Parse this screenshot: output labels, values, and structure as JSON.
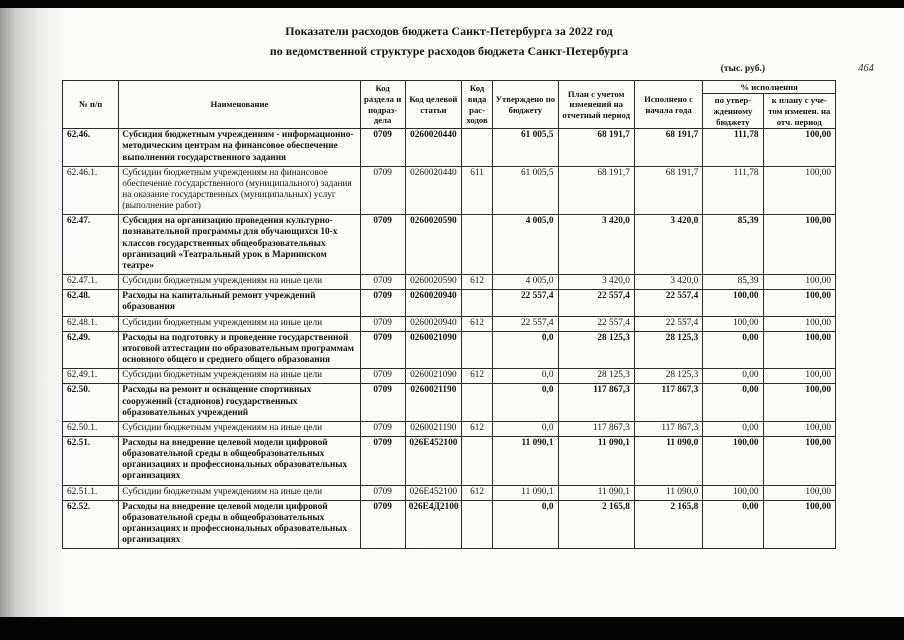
{
  "page_number": "464",
  "title_line1": "Показатели расходов бюджета Санкт-Петербурга за 2022 год",
  "title_line2": "по ведомственной структуре расходов бюджета Санкт-Петербурга",
  "units_note": "(тыс. руб.)",
  "table": {
    "headers": {
      "num": "№ п/п",
      "name": "Наименование",
      "section": "Код раздела и подраз-дела",
      "target": "Код целевой статьи",
      "vid": "Код вида рас-ходов",
      "approved": "Утверждено по бюджету",
      "plan": "План с учетом изменений на отчетный период",
      "executed": "Исполнено с начала года",
      "pct": "% исполнения",
      "pct_budget": "по утвер-жденному бюджету",
      "pct_plan": "к плану с уче-том изменен. на отч. период"
    },
    "rows": [
      {
        "num": "62.46.",
        "bold": true,
        "name": "Субсидия бюджетным учреждениям - информационно-методическим центрам на финансовое обеспечение выполнения государственного задания",
        "section": "0709",
        "target": "0260020440",
        "vid": "",
        "approved": "61 005,5",
        "plan": "68 191,7",
        "executed": "68 191,7",
        "pct_budget": "111,78",
        "pct_plan": "100,00"
      },
      {
        "num": "62.46.1.",
        "bold": false,
        "name": "Субсидии бюджетным учреждениям на финансовое обеспечение государственного (муниципального) задания на оказание государственных (муниципальных) услуг (выполнение работ)",
        "section": "0709",
        "target": "0260020440",
        "vid": "611",
        "approved": "61 005,5",
        "plan": "68 191,7",
        "executed": "68 191,7",
        "pct_budget": "111,78",
        "pct_plan": "100,00"
      },
      {
        "num": "62.47.",
        "bold": true,
        "name": "Субсидия на организацию проведения культурно-познавательной программы для обучающихся 10-х классов государственных общеобразовательных организаций «Театральный урок в Мариинском театре»",
        "section": "0709",
        "target": "0260020590",
        "vid": "",
        "approved": "4 005,0",
        "plan": "3 420,0",
        "executed": "3 420,0",
        "pct_budget": "85,39",
        "pct_plan": "100,00"
      },
      {
        "num": "62.47.1.",
        "bold": false,
        "name": "Субсидии бюджетным учреждениям на иные цели",
        "section": "0709",
        "target": "0260020590",
        "vid": "612",
        "approved": "4 005,0",
        "plan": "3 420,0",
        "executed": "3 420,0",
        "pct_budget": "85,39",
        "pct_plan": "100,00"
      },
      {
        "num": "62.48.",
        "bold": true,
        "name": "Расходы на капитальный ремонт учреждений образования",
        "section": "0709",
        "target": "0260020940",
        "vid": "",
        "approved": "22 557,4",
        "plan": "22 557,4",
        "executed": "22 557,4",
        "pct_budget": "100,00",
        "pct_plan": "100,00"
      },
      {
        "num": "62.48.1.",
        "bold": false,
        "name": "Субсидии бюджетным учреждениям на иные цели",
        "section": "0709",
        "target": "0260020940",
        "vid": "612",
        "approved": "22 557,4",
        "plan": "22 557,4",
        "executed": "22 557,4",
        "pct_budget": "100,00",
        "pct_plan": "100,00"
      },
      {
        "num": "62.49.",
        "bold": true,
        "name": "Расходы на подготовку и проведение государственной итоговой аттестации по образовательным программам основного общего и среднего общего образования",
        "section": "0709",
        "target": "0260021090",
        "vid": "",
        "approved": "0,0",
        "plan": "28 125,3",
        "executed": "28 125,3",
        "pct_budget": "0,00",
        "pct_plan": "100,00"
      },
      {
        "num": "62.49.1.",
        "bold": false,
        "name": "Субсидии бюджетным учреждениям на иные цели",
        "section": "0709",
        "target": "0260021090",
        "vid": "612",
        "approved": "0,0",
        "plan": "28 125,3",
        "executed": "28 125,3",
        "pct_budget": "0,00",
        "pct_plan": "100,00"
      },
      {
        "num": "62.50.",
        "bold": true,
        "name": "Расходы на ремонт и оснащение спортивных сооружений (стадионов) государственных образовательных учреждений",
        "section": "0709",
        "target": "0260021190",
        "vid": "",
        "approved": "0,0",
        "plan": "117 867,3",
        "executed": "117 867,3",
        "pct_budget": "0,00",
        "pct_plan": "100,00"
      },
      {
        "num": "62.50.1.",
        "bold": false,
        "name": "Субсидии бюджетным учреждениям на иные цели",
        "section": "0709",
        "target": "0260021190",
        "vid": "612",
        "approved": "0,0",
        "plan": "117 867,3",
        "executed": "117 867,3",
        "pct_budget": "0,00",
        "pct_plan": "100,00"
      },
      {
        "num": "62.51.",
        "bold": true,
        "name": "Расходы на внедрение целевой модели цифровой образовательной среды в общеобразовательных организациях и профессиональных образовательных организациях",
        "section": "0709",
        "target": "026E452100",
        "vid": "",
        "approved": "11 090,1",
        "plan": "11 090,1",
        "executed": "11 090,0",
        "pct_budget": "100,00",
        "pct_plan": "100,00"
      },
      {
        "num": "62.51.1.",
        "bold": false,
        "name": "Субсидии бюджетным учреждениям на иные цели",
        "section": "0709",
        "target": "026E452100",
        "vid": "612",
        "approved": "11 090,1",
        "plan": "11 090,1",
        "executed": "11 090,0",
        "pct_budget": "100,00",
        "pct_plan": "100,00"
      },
      {
        "num": "62.52.",
        "bold": true,
        "name": "Расходы на внедрение целевой модели цифровой образовательной среды в общеобразовательных организациях и профессиональных образовательных организациях",
        "section": "0709",
        "target": "026E4Д2100",
        "vid": "",
        "approved": "0,0",
        "plan": "2 165,8",
        "executed": "2 165,8",
        "pct_budget": "0,00",
        "pct_plan": "100,00"
      }
    ]
  }
}
